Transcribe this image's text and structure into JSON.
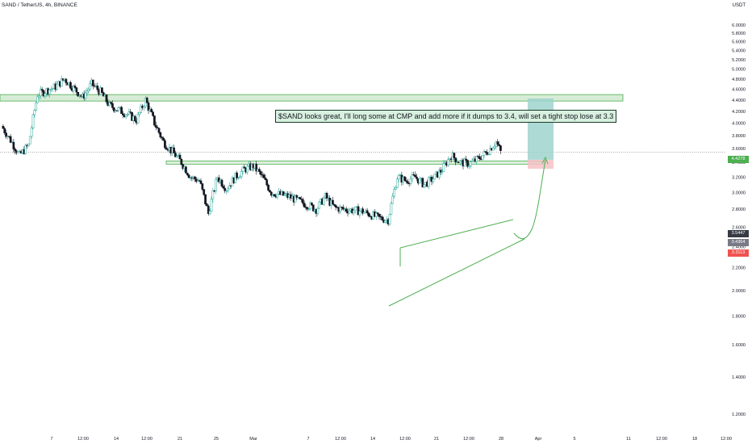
{
  "header": {
    "symbol_title": "SAND / TetherUS, 4h, BINANCE",
    "currency": "USDT"
  },
  "annotation": {
    "text": "$SAND looks great, I'll long some at CMP and add  more if it dumps to 3.4, will set a tight stop lose at 3.3"
  },
  "price_tags": {
    "target": "4.4278",
    "current": "3.5447",
    "entry": "3.4364",
    "stop": "3.3113"
  },
  "colors": {
    "up": "#26a69a",
    "down": "#131722",
    "zone_fill": "#c8e6c9",
    "zone_stroke": "#4caf50",
    "trend": "#4caf50",
    "profit": "#9fd3cd",
    "loss": "#f4c2c7",
    "target_tag": "#4caf50",
    "current_tag": "#363a45",
    "entry_tag": "#787b86",
    "stop_tag": "#ef5350"
  },
  "chart_data": {
    "type": "candlestick",
    "title": "SAND / TetherUS, 4h, BINANCE",
    "y_axis": {
      "scale": "log",
      "ticks": [
        "1.2000",
        "1.4000",
        "1.6000",
        "1.8000",
        "2.0000",
        "2.2000",
        "2.4000",
        "2.6000",
        "2.8000",
        "3.0000",
        "3.2000",
        "3.4000",
        "3.6000",
        "3.8000",
        "4.0000",
        "4.2000",
        "4.4000",
        "4.6000",
        "4.8000",
        "5.0000",
        "5.2000",
        "5.4000",
        "5.6000",
        "5.8000",
        "6.0000"
      ],
      "range": [
        1.15,
        6.3
      ]
    },
    "x_axis": {
      "ticks": [
        "7",
        "12:00",
        "14",
        "12:00",
        "21",
        "25",
        "Mar",
        "7",
        "12:00",
        "14",
        "12:00",
        "21",
        "12:00",
        "28",
        "Apr",
        "5",
        "11",
        "12:00",
        "18",
        "12:00"
      ]
    },
    "price_path": [
      {
        "t": "Feb 1",
        "price": 3.95
      },
      {
        "t": "Feb 3",
        "price": 3.5
      },
      {
        "t": "Feb 4",
        "price": 3.65
      },
      {
        "t": "Feb 5",
        "price": 4.5
      },
      {
        "t": "Feb 7",
        "price": 4.65
      },
      {
        "t": "Feb 8",
        "price": 4.8
      },
      {
        "t": "Feb 10",
        "price": 4.45
      },
      {
        "t": "Feb 11",
        "price": 4.7
      },
      {
        "t": "Feb 12",
        "price": 4.55
      },
      {
        "t": "Feb 13",
        "price": 4.3
      },
      {
        "t": "Feb 15",
        "price": 4.15
      },
      {
        "t": "Feb 16",
        "price": 4.05
      },
      {
        "t": "Feb 17",
        "price": 4.4
      },
      {
        "t": "Feb 18",
        "price": 4.0
      },
      {
        "t": "Feb 19",
        "price": 3.7
      },
      {
        "t": "Feb 21",
        "price": 3.4
      },
      {
        "t": "Feb 22",
        "price": 3.2
      },
      {
        "t": "Feb 23",
        "price": 3.15
      },
      {
        "t": "Feb 24",
        "price": 2.75
      },
      {
        "t": "Feb 25",
        "price": 3.2
      },
      {
        "t": "Feb 26",
        "price": 3.05
      },
      {
        "t": "Feb 27",
        "price": 3.2
      },
      {
        "t": "Feb 28",
        "price": 3.3
      },
      {
        "t": "Mar 1",
        "price": 3.35
      },
      {
        "t": "Mar 2",
        "price": 3.2
      },
      {
        "t": "Mar 3",
        "price": 3.0
      },
      {
        "t": "Mar 5",
        "price": 2.95
      },
      {
        "t": "Mar 7",
        "price": 2.85
      },
      {
        "t": "Mar 8",
        "price": 2.8
      },
      {
        "t": "Mar 9",
        "price": 2.95
      },
      {
        "t": "Mar 10",
        "price": 2.82
      },
      {
        "t": "Mar 11",
        "price": 2.8
      },
      {
        "t": "Mar 13",
        "price": 2.78
      },
      {
        "t": "Mar 15",
        "price": 2.7
      },
      {
        "t": "Mar 16",
        "price": 2.68
      },
      {
        "t": "Mar 17",
        "price": 3.2
      },
      {
        "t": "Mar 18",
        "price": 3.15
      },
      {
        "t": "Mar 19",
        "price": 3.2
      },
      {
        "t": "Mar 20",
        "price": 3.1
      },
      {
        "t": "Mar 21",
        "price": 3.18
      },
      {
        "t": "Mar 22",
        "price": 3.3
      },
      {
        "t": "Mar 23",
        "price": 3.5
      },
      {
        "t": "Mar 24",
        "price": 3.4
      },
      {
        "t": "Mar 25",
        "price": 3.38
      },
      {
        "t": "Mar 26",
        "price": 3.45
      },
      {
        "t": "Mar 27",
        "price": 3.55
      },
      {
        "t": "Mar 28",
        "price": 3.7
      },
      {
        "t": "Mar 28 12:00",
        "price": 3.55
      }
    ],
    "levels": {
      "resistance_zone": [
        4.42,
        4.5
      ],
      "support_zone": [
        3.38,
        3.42
      ],
      "target": 4.4278,
      "current": 3.5447,
      "entry": 3.4364,
      "stop": 3.3113
    }
  }
}
